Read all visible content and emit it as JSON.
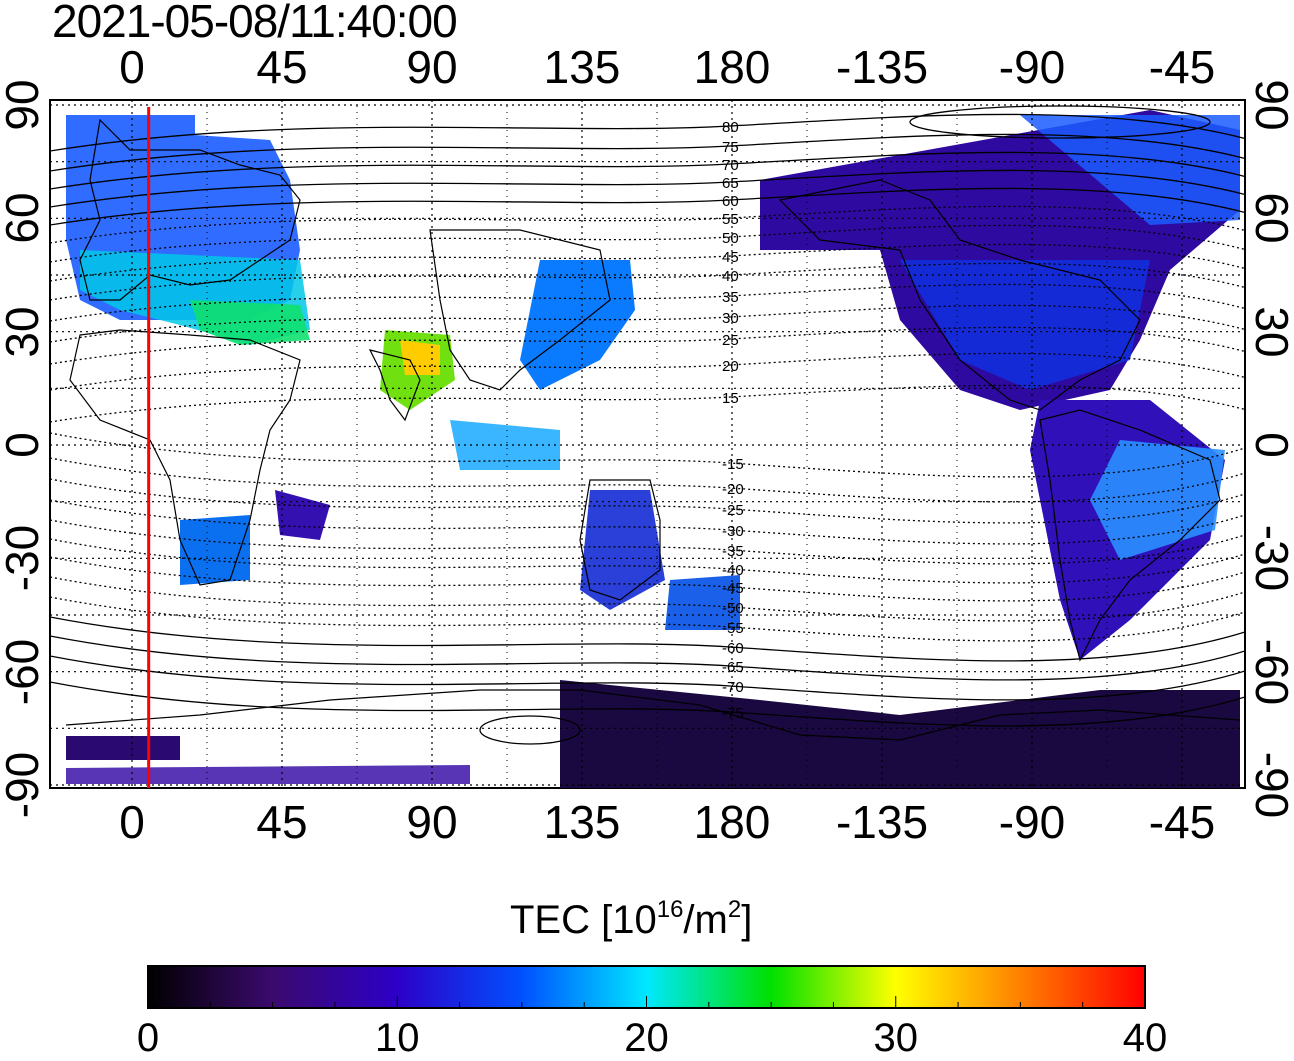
{
  "title": "2021-05-08/11:40:00",
  "x_ticks": [
    "0",
    "45",
    "90",
    "135",
    "180",
    "-135",
    "-90",
    "-45"
  ],
  "y_ticks": [
    "90",
    "60",
    "30",
    "0",
    "-30",
    "-60",
    "-90"
  ],
  "contour_labels": [
    "80",
    "75",
    "70",
    "65",
    "60",
    "55",
    "50",
    "45",
    "40",
    "35",
    "30",
    "25",
    "20",
    "15",
    "-15",
    "-20",
    "-25",
    "-30",
    "-35",
    "-40",
    "-45",
    "-50",
    "-55",
    "-60",
    "-65",
    "-70",
    "-75"
  ],
  "colorbar": {
    "title_main": "TEC  [10",
    "title_exp": "16",
    "title_unit": "/m",
    "title_exp2": "2",
    "title_end": "]",
    "labels": [
      "0",
      "10",
      "20",
      "30",
      "40"
    ],
    "range": [
      0,
      40
    ],
    "stops": [
      "#000000",
      "#3b0a6e",
      "#2d00c8",
      "#0050ff",
      "#00e8ff",
      "#00e000",
      "#ffff00",
      "#ff8000",
      "#ff0000"
    ]
  },
  "marker": {
    "longitude": 5,
    "color": "#ff0000"
  },
  "colors": {
    "land_outline": "#000000",
    "grid": "#000000"
  }
}
